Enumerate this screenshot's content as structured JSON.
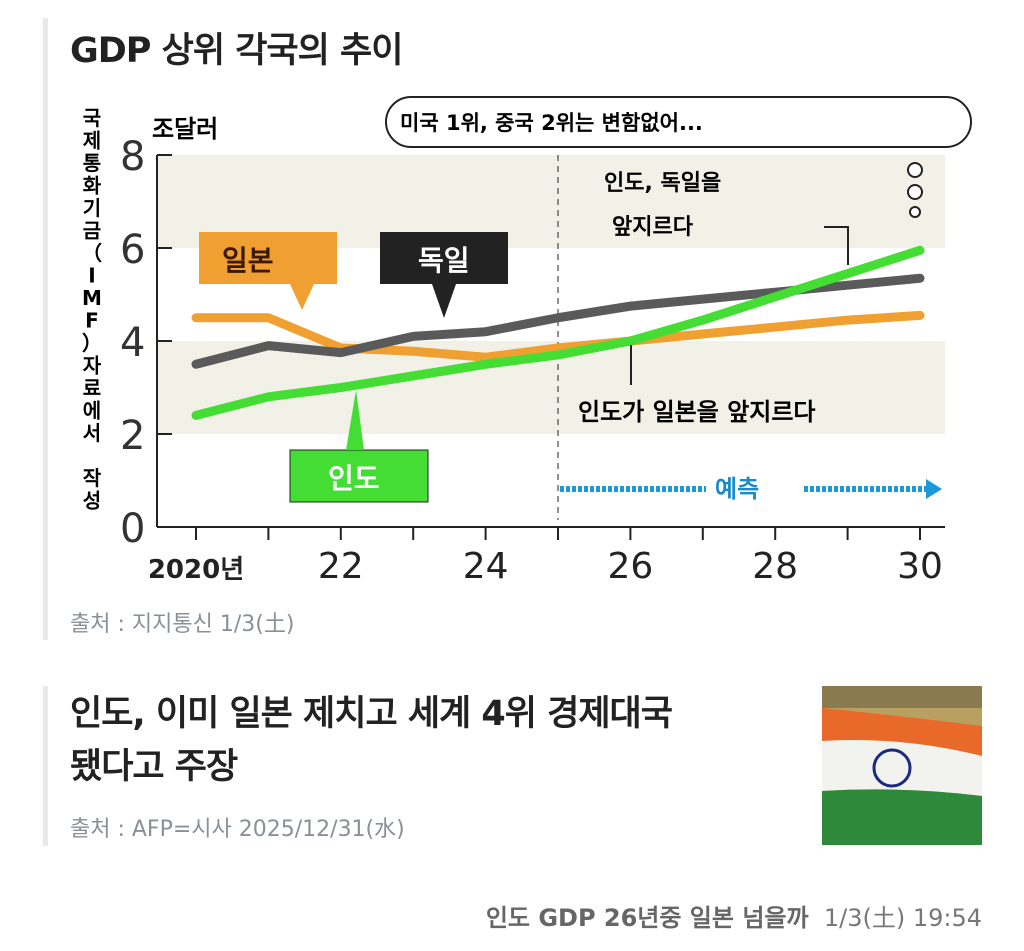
{
  "article1": {
    "title": "GDP 상위 각국의 추이",
    "source": "출처 : 지지통신 1/3(土)"
  },
  "article2": {
    "title_line1": "인도, 이미 일본 제치고 세계 4위 경제대국",
    "title_line2": "됐다고 주장",
    "source": "출처 : AFP=시사 2025/12/31(水)",
    "thumbnail_icon": "india-flag-image"
  },
  "footer": {
    "headline": "인도 GDP 26년중 일본 넘을까",
    "time": "1/3(土) 19:54"
  },
  "chart_data": {
    "type": "line",
    "ylabel_vertical": "국제통화기금（IMF）자료에서 작성",
    "unit": "조달러",
    "ylim": [
      0,
      8
    ],
    "yticks": [
      "0",
      "2",
      "4",
      "6",
      "8"
    ],
    "x": [
      2020,
      2021,
      2022,
      2023,
      2024,
      2025,
      2026,
      2027,
      2028,
      2029,
      2030
    ],
    "xtick_labels": [
      "2020년",
      "22",
      "24",
      "26",
      "28",
      "30"
    ],
    "series": [
      {
        "name": "일본",
        "color": "#f0a030",
        "values": [
          4.5,
          4.5,
          3.85,
          3.78,
          3.65,
          3.85,
          4.0,
          4.15,
          4.3,
          4.45,
          4.55
        ]
      },
      {
        "name": "독일",
        "color": "#5a5a5a",
        "values": [
          3.5,
          3.9,
          3.75,
          4.1,
          4.2,
          4.5,
          4.75,
          4.9,
          5.05,
          5.2,
          5.35
        ]
      },
      {
        "name": "인도",
        "color": "#44dd33",
        "values": [
          2.4,
          2.8,
          3.0,
          3.25,
          3.5,
          3.7,
          4.0,
          4.45,
          4.95,
          5.45,
          5.95
        ]
      }
    ],
    "annotations": {
      "bubble": "미국 1위, 중국 2위는 변함없어...",
      "india_germany_1": "인도, 독일을",
      "india_germany_2": "앞지르다",
      "india_japan": "인도가 일본을 앞지르다",
      "forecast": "예측"
    },
    "forecast_start": 2025
  }
}
